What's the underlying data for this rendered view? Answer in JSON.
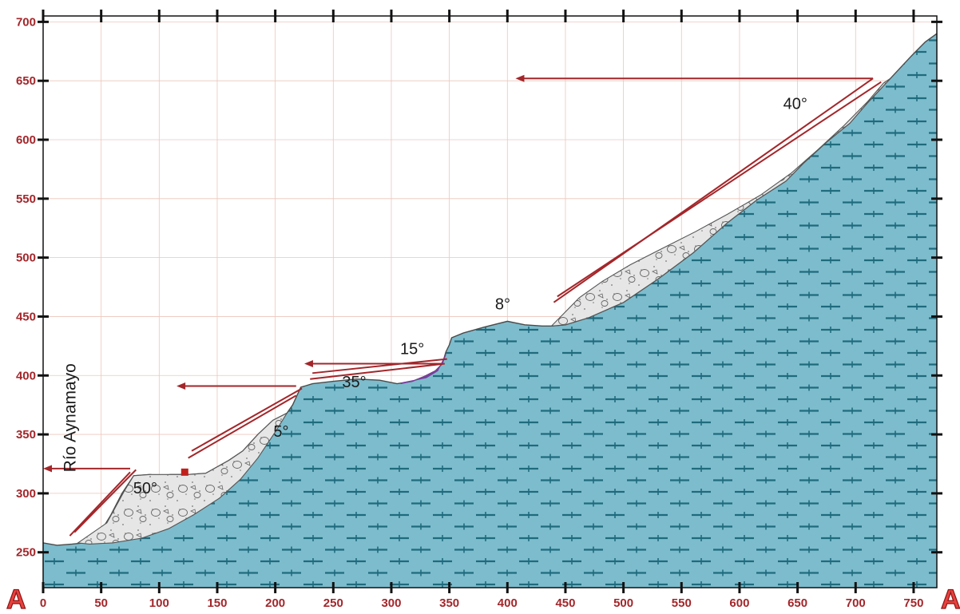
{
  "section": {
    "start_label": "A",
    "end_label": "A"
  },
  "axes": {
    "x_ticks": [
      "0",
      "50",
      "100",
      "150",
      "200",
      "250",
      "300",
      "350",
      "400",
      "450",
      "500",
      "550",
      "600",
      "650",
      "700",
      "750"
    ],
    "y_ticks": [
      "700",
      "650",
      "600",
      "550",
      "500",
      "450",
      "400",
      "350",
      "300",
      "250"
    ],
    "x_range": [
      0,
      770
    ],
    "y_range": [
      220,
      705
    ],
    "grid": true
  },
  "labels": {
    "river": "Río Aynamayo",
    "angles": [
      "50°",
      "5°",
      "35°",
      "15°",
      "8°",
      "40°"
    ]
  },
  "colors": {
    "bedrock": "#7dbccc",
    "bedrock_texture": "#1f6b7e",
    "deposit": "#e6e6e6",
    "deposit_stroke": "#555555",
    "arrow": "#a3262a",
    "grid": "#ecc6bb",
    "tick_text": "#a3262a",
    "section_letter": "#e8413e",
    "sample_marker": "#c0201c",
    "purple_lens": "#7a3e9c"
  },
  "terrain": [
    [
      0,
      258
    ],
    [
      12,
      256
    ],
    [
      25,
      257
    ],
    [
      35,
      258
    ],
    [
      48,
      265
    ],
    [
      58,
      281
    ],
    [
      68,
      300
    ],
    [
      78,
      315
    ],
    [
      92,
      316
    ],
    [
      100,
      315
    ],
    [
      110,
      316
    ],
    [
      125,
      316
    ],
    [
      140,
      317
    ],
    [
      160,
      328
    ],
    [
      172,
      336
    ],
    [
      185,
      350
    ],
    [
      198,
      362
    ],
    [
      210,
      368
    ],
    [
      215,
      375
    ],
    [
      222,
      390
    ],
    [
      232,
      393
    ],
    [
      250,
      395
    ],
    [
      270,
      397
    ],
    [
      290,
      396
    ],
    [
      305,
      393
    ],
    [
      318,
      395
    ],
    [
      328,
      399
    ],
    [
      338,
      404
    ],
    [
      344,
      410
    ],
    [
      347,
      420
    ],
    [
      350,
      426
    ],
    [
      352,
      432
    ],
    [
      362,
      436
    ],
    [
      380,
      441
    ],
    [
      400,
      446
    ],
    [
      415,
      443
    ],
    [
      430,
      442
    ],
    [
      438,
      442
    ],
    [
      450,
      443
    ],
    [
      470,
      449
    ],
    [
      500,
      462
    ],
    [
      530,
      482
    ],
    [
      560,
      504
    ],
    [
      590,
      530
    ],
    [
      615,
      549
    ],
    [
      640,
      565
    ],
    [
      655,
      580
    ],
    [
      675,
      598
    ],
    [
      695,
      614
    ],
    [
      710,
      631
    ],
    [
      730,
      652
    ],
    [
      748,
      671
    ],
    [
      760,
      683
    ],
    [
      770,
      690
    ]
  ],
  "deposits": [
    {
      "name": "lower-slide",
      "outline": [
        [
          30,
          258
        ],
        [
          55,
          275
        ],
        [
          70,
          302
        ],
        [
          78,
          315
        ],
        [
          92,
          316
        ],
        [
          110,
          316
        ],
        [
          125,
          316
        ],
        [
          140,
          317
        ],
        [
          160,
          328
        ],
        [
          172,
          336
        ],
        [
          185,
          350
        ],
        [
          198,
          362
        ],
        [
          210,
          368
        ],
        [
          200,
          352
        ],
        [
          185,
          330
        ],
        [
          170,
          312
        ],
        [
          152,
          296
        ],
        [
          130,
          282
        ],
        [
          108,
          270
        ],
        [
          85,
          262
        ],
        [
          60,
          258
        ],
        [
          40,
          257
        ]
      ]
    },
    {
      "name": "middle-lens",
      "outline": [
        [
          308,
          393
        ],
        [
          318,
          395
        ],
        [
          328,
          399
        ],
        [
          338,
          404
        ],
        [
          344,
          410
        ],
        [
          347,
          418
        ],
        [
          340,
          404
        ],
        [
          330,
          398
        ],
        [
          320,
          396
        ],
        [
          310,
          394
        ]
      ]
    },
    {
      "name": "upper-slide",
      "outline": [
        [
          438,
          442
        ],
        [
          450,
          443
        ],
        [
          470,
          449
        ],
        [
          500,
          462
        ],
        [
          530,
          482
        ],
        [
          560,
          504
        ],
        [
          590,
          530
        ],
        [
          615,
          549
        ],
        [
          640,
          565
        ],
        [
          655,
          580
        ],
        [
          675,
          598
        ],
        [
          695,
          614
        ],
        [
          710,
          631
        ],
        [
          730,
          652
        ],
        [
          724,
          648
        ],
        [
          710,
          632
        ],
        [
          690,
          612
        ],
        [
          668,
          592
        ],
        [
          645,
          572
        ],
        [
          618,
          553
        ],
        [
          590,
          537
        ],
        [
          562,
          522
        ],
        [
          534,
          508
        ],
        [
          506,
          494
        ],
        [
          482,
          480
        ],
        [
          462,
          466
        ],
        [
          448,
          452
        ]
      ]
    }
  ],
  "arrows": [
    {
      "from": [
        75,
        321
      ],
      "to": [
        0,
        321
      ]
    },
    {
      "from": [
        218,
        391
      ],
      "to": [
        115,
        391
      ]
    },
    {
      "from": [
        343,
        410
      ],
      "to": [
        225,
        410
      ]
    },
    {
      "from": [
        715,
        652
      ],
      "to": [
        407,
        652
      ]
    }
  ],
  "slip_lines": [
    {
      "from": [
        23,
        264
      ],
      "to": [
        75,
        318
      ]
    },
    {
      "from": [
        27,
        267
      ],
      "to": [
        80,
        320
      ]
    },
    {
      "from": [
        125,
        330
      ],
      "to": [
        218,
        383
      ]
    },
    {
      "from": [
        128,
        336
      ],
      "to": [
        223,
        389
      ]
    },
    {
      "from": [
        230,
        397
      ],
      "to": [
        346,
        410
      ]
    },
    {
      "from": [
        232,
        402
      ],
      "to": [
        348,
        414
      ]
    },
    {
      "from": [
        440,
        462
      ],
      "to": [
        715,
        652
      ]
    },
    {
      "from": [
        443,
        467
      ],
      "to": [
        722,
        649
      ]
    }
  ],
  "angle_positions": [
    [
      88,
      300
    ],
    [
      205,
      348
    ],
    [
      268,
      390
    ],
    [
      318,
      418
    ],
    [
      396,
      456
    ],
    [
      648,
      626
    ]
  ],
  "river_position": [
    28,
    318
  ],
  "sample_marker": [
    122,
    318
  ]
}
